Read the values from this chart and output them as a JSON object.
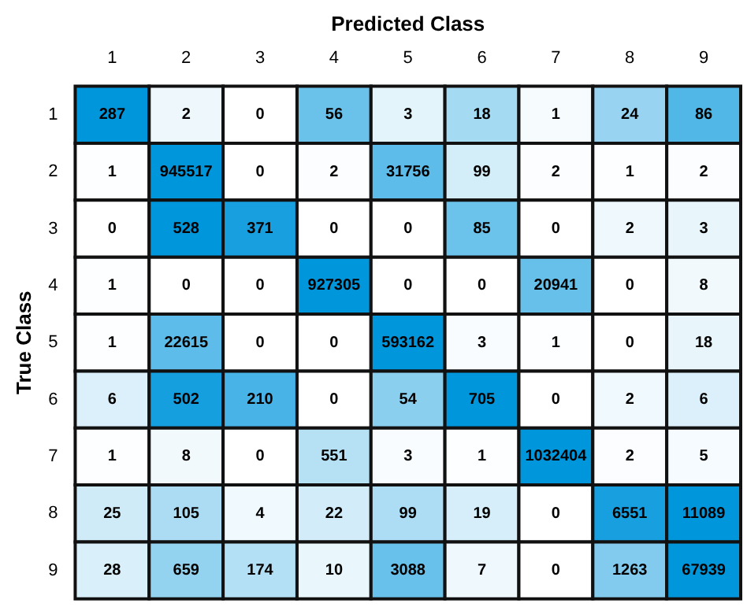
{
  "chart_data": {
    "type": "heatmap",
    "xlabel": "Predicted Class",
    "ylabel": "True Class",
    "categories": [
      "1",
      "2",
      "3",
      "4",
      "5",
      "6",
      "7",
      "8",
      "9"
    ],
    "y_categories": [
      "1",
      "2",
      "3",
      "4",
      "5",
      "6",
      "7",
      "8",
      "9"
    ],
    "cells": [
      [
        287,
        2,
        0,
        56,
        3,
        18,
        1,
        24,
        86
      ],
      [
        1,
        945517,
        0,
        2,
        31756,
        99,
        2,
        1,
        2
      ],
      [
        0,
        528,
        371,
        0,
        0,
        85,
        0,
        2,
        3
      ],
      [
        1,
        0,
        0,
        927305,
        0,
        0,
        20941,
        0,
        8
      ],
      [
        1,
        22615,
        0,
        0,
        593162,
        3,
        1,
        0,
        18
      ],
      [
        6,
        502,
        210,
        0,
        54,
        705,
        0,
        2,
        6
      ],
      [
        1,
        8,
        0,
        551,
        3,
        1,
        1032404,
        2,
        5
      ],
      [
        25,
        105,
        4,
        22,
        99,
        19,
        0,
        6551,
        11089
      ],
      [
        28,
        659,
        174,
        10,
        3088,
        7,
        0,
        1263,
        67939
      ]
    ],
    "data_labels": true
  }
}
